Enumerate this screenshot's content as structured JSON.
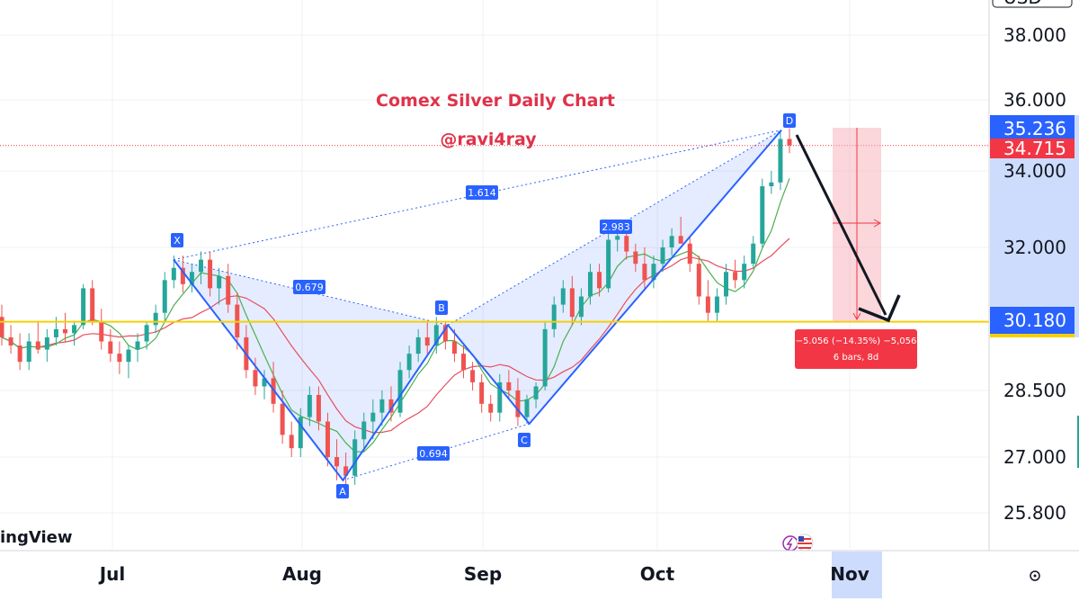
{
  "chart_data": {
    "type": "candlestick",
    "title": "Comex Silver Daily Chart",
    "subtitle": "@ravi4ray",
    "watermark": "ingView",
    "y_axis": {
      "ticks": [
        "38.000",
        "36.000",
        "34.000",
        "32.000",
        "28.500",
        "27.000",
        "25.800"
      ],
      "tick_values": [
        38.0,
        36.0,
        34.0,
        32.0,
        28.5,
        27.0,
        25.8
      ],
      "top_label": "USD"
    },
    "x_axis": {
      "months": [
        "Jul",
        "Aug",
        "Sep",
        "Oct",
        "Nov"
      ]
    },
    "price_tags": {
      "high": "35.236",
      "last": "34.715",
      "support": "30.180"
    },
    "support_level": 30.18,
    "harmonic_pattern": {
      "points": [
        {
          "label": "X",
          "date": "2025-07-11",
          "price": 31.7
        },
        {
          "label": "A",
          "date": "2025-08-08",
          "price": 26.5
        },
        {
          "label": "B",
          "date": "2025-08-26",
          "price": 30.1
        },
        {
          "label": "C",
          "date": "2025-09-09",
          "price": 27.75
        },
        {
          "label": "D",
          "date": "2025-10-21",
          "price": 35.15
        }
      ],
      "ratios": [
        {
          "label": "0.679"
        },
        {
          "label": "0.694"
        },
        {
          "label": "2.983"
        },
        {
          "label": "1.614"
        }
      ]
    },
    "measure": {
      "line1": "−5.056 (−14.35%) −5,056",
      "line2": "6 bars, 8d"
    },
    "candles": [
      [
        30.3,
        30.6,
        29.6,
        29.8
      ],
      [
        29.8,
        30.1,
        29.4,
        29.6
      ],
      [
        29.6,
        29.9,
        29.0,
        29.2
      ],
      [
        29.2,
        29.9,
        29.0,
        29.7
      ],
      [
        29.7,
        30.2,
        29.4,
        29.5
      ],
      [
        29.5,
        30.0,
        29.2,
        29.8
      ],
      [
        29.8,
        30.3,
        29.6,
        30.0
      ],
      [
        30.0,
        30.4,
        29.7,
        29.9
      ],
      [
        29.9,
        30.2,
        29.6,
        30.1
      ],
      [
        30.1,
        31.1,
        30.0,
        31.0
      ],
      [
        31.0,
        31.2,
        30.1,
        30.2
      ],
      [
        30.2,
        30.5,
        29.5,
        29.7
      ],
      [
        29.7,
        30.0,
        29.2,
        29.4
      ],
      [
        29.4,
        29.7,
        28.9,
        29.2
      ],
      [
        29.2,
        29.6,
        28.8,
        29.5
      ],
      [
        29.5,
        29.9,
        29.2,
        29.7
      ],
      [
        29.7,
        30.2,
        29.5,
        30.1
      ],
      [
        30.1,
        30.6,
        29.9,
        30.4
      ],
      [
        30.4,
        31.4,
        30.2,
        31.2
      ],
      [
        31.2,
        31.8,
        31.0,
        31.5
      ],
      [
        31.5,
        31.8,
        30.9,
        31.1
      ],
      [
        31.1,
        31.6,
        30.9,
        31.4
      ],
      [
        31.4,
        31.9,
        31.1,
        31.7
      ],
      [
        31.7,
        31.9,
        30.8,
        31.0
      ],
      [
        31.0,
        31.5,
        30.6,
        31.3
      ],
      [
        31.3,
        31.6,
        30.4,
        30.6
      ],
      [
        30.6,
        30.9,
        29.5,
        29.8
      ],
      [
        29.8,
        30.1,
        28.8,
        29.0
      ],
      [
        29.0,
        29.3,
        28.4,
        28.6
      ],
      [
        28.6,
        29.0,
        28.3,
        28.8
      ],
      [
        28.8,
        29.2,
        28.0,
        28.2
      ],
      [
        28.2,
        28.5,
        27.3,
        27.5
      ],
      [
        27.5,
        27.8,
        27.0,
        27.2
      ],
      [
        27.2,
        28.1,
        27.0,
        27.9
      ],
      [
        27.9,
        28.6,
        27.7,
        28.4
      ],
      [
        28.4,
        28.6,
        27.6,
        27.8
      ],
      [
        27.8,
        28.0,
        26.8,
        27.0
      ],
      [
        27.0,
        27.4,
        26.5,
        26.8
      ],
      [
        26.8,
        27.1,
        26.3,
        26.6
      ],
      [
        26.6,
        27.6,
        26.4,
        27.4
      ],
      [
        27.4,
        28.0,
        27.2,
        27.8
      ],
      [
        27.8,
        28.3,
        27.4,
        28.0
      ],
      [
        28.0,
        28.5,
        27.7,
        28.3
      ],
      [
        28.3,
        28.6,
        27.8,
        28.0
      ],
      [
        28.0,
        29.2,
        27.9,
        29.0
      ],
      [
        29.0,
        29.6,
        28.8,
        29.4
      ],
      [
        29.4,
        30.0,
        29.2,
        29.8
      ],
      [
        29.8,
        30.2,
        29.4,
        29.6
      ],
      [
        29.6,
        30.3,
        29.4,
        30.1
      ],
      [
        30.1,
        30.2,
        29.5,
        29.7
      ],
      [
        29.7,
        30.0,
        29.2,
        29.4
      ],
      [
        29.4,
        29.6,
        28.8,
        29.0
      ],
      [
        29.0,
        29.2,
        28.5,
        28.7
      ],
      [
        28.7,
        28.9,
        28.0,
        28.2
      ],
      [
        28.2,
        28.4,
        27.8,
        28.0
      ],
      [
        28.0,
        28.9,
        27.8,
        28.7
      ],
      [
        28.7,
        29.0,
        28.3,
        28.5
      ],
      [
        28.5,
        28.8,
        27.7,
        27.9
      ],
      [
        27.9,
        28.4,
        27.75,
        28.3
      ],
      [
        28.3,
        28.7,
        28.1,
        28.6
      ],
      [
        28.6,
        30.2,
        28.5,
        30.0
      ],
      [
        30.0,
        30.8,
        29.8,
        30.6
      ],
      [
        30.6,
        31.2,
        30.4,
        31.0
      ],
      [
        31.0,
        31.3,
        30.1,
        30.3
      ],
      [
        30.3,
        31.0,
        30.1,
        30.8
      ],
      [
        30.8,
        31.6,
        30.6,
        31.4
      ],
      [
        31.4,
        31.6,
        30.8,
        31.0
      ],
      [
        31.0,
        32.4,
        30.9,
        32.2
      ],
      [
        32.2,
        32.6,
        31.9,
        32.3
      ],
      [
        32.3,
        32.5,
        31.7,
        31.9
      ],
      [
        31.9,
        32.1,
        31.4,
        31.6
      ],
      [
        31.6,
        32.0,
        31.0,
        31.2
      ],
      [
        31.2,
        31.8,
        31.0,
        31.6
      ],
      [
        31.6,
        32.2,
        31.4,
        32.0
      ],
      [
        32.0,
        32.5,
        31.8,
        32.3
      ],
      [
        32.3,
        32.8,
        32.1,
        32.1
      ],
      [
        32.1,
        32.3,
        31.4,
        31.6
      ],
      [
        31.6,
        31.8,
        30.6,
        30.8
      ],
      [
        30.8,
        31.2,
        30.2,
        30.4
      ],
      [
        30.4,
        31.0,
        30.2,
        30.8
      ],
      [
        30.8,
        31.6,
        30.6,
        31.4
      ],
      [
        31.4,
        31.7,
        31.0,
        31.2
      ],
      [
        31.2,
        31.8,
        31.0,
        31.6
      ],
      [
        31.6,
        32.3,
        31.5,
        32.1
      ],
      [
        32.1,
        33.8,
        32.0,
        33.6
      ],
      [
        33.6,
        34.0,
        33.4,
        33.7
      ],
      [
        33.7,
        35.1,
        33.5,
        34.9
      ],
      [
        34.9,
        35.2,
        34.5,
        34.72
      ]
    ]
  }
}
